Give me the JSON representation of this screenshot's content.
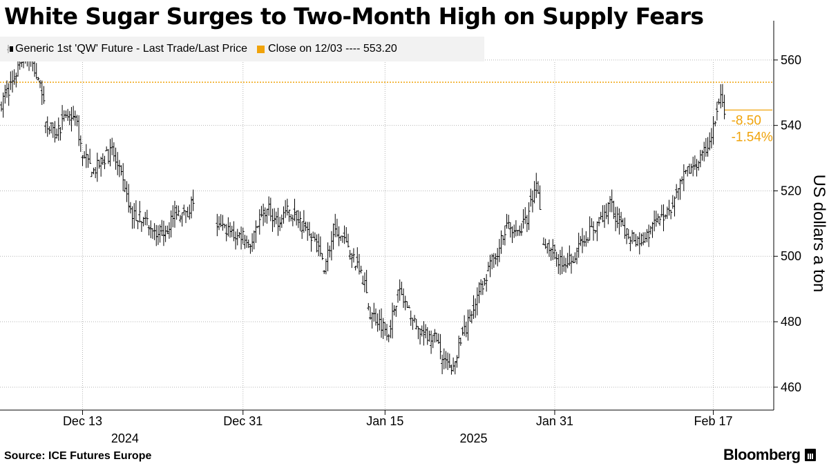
{
  "title": "White Sugar Surges to Two-Month High on Supply Fears",
  "source": "Source: ICE Futures Europe",
  "brand": "Bloomberg",
  "legend": {
    "series_label": "Generic 1st 'QW' Future - Last Trade/Last Price",
    "close_label": "Close on 12/03 ---- 553.20"
  },
  "colors": {
    "series": "#000000",
    "close": "#f0a30a",
    "grid": "#b3b3b3",
    "legend_bg": "#f2f2f2"
  },
  "icons": {
    "series": "ohlc-bar-icon",
    "brand": "bloomberg-terminal-icon"
  },
  "chart_data": {
    "type": "ohlc",
    "ylabel": "US dollars a ton",
    "ylim": [
      453,
      572
    ],
    "yticks": [
      460,
      480,
      500,
      520,
      540,
      560
    ],
    "xticks": [
      {
        "label": "Dec 13",
        "index": 44
      },
      {
        "label": "Dec 31",
        "index": 131
      },
      {
        "label": "Jan 15",
        "index": 208
      },
      {
        "label": "Jan 31",
        "index": 300
      },
      {
        "label": "Feb 17",
        "index": 386
      }
    ],
    "year_labels": [
      {
        "label": "2024",
        "index": 67
      },
      {
        "label": "2025",
        "index": 256
      }
    ],
    "x_range": [
      0,
      418
    ],
    "gaps": [
      [
        104,
        117
      ],
      [
        292,
        294
      ]
    ],
    "reference_line": {
      "label": "Close on 12/03",
      "value": 553.2
    },
    "last_price": 544.7,
    "change": {
      "abs": "-8.50",
      "pct": "-1.54%"
    },
    "anchors": [
      [
        0,
        547
      ],
      [
        6,
        553
      ],
      [
        10,
        560
      ],
      [
        14,
        562
      ],
      [
        18,
        557
      ],
      [
        22,
        549
      ],
      [
        25,
        540
      ],
      [
        30,
        538
      ],
      [
        36,
        543
      ],
      [
        40,
        542
      ],
      [
        44,
        532
      ],
      [
        50,
        526
      ],
      [
        56,
        530
      ],
      [
        60,
        532
      ],
      [
        65,
        524
      ],
      [
        70,
        513
      ],
      [
        75,
        512
      ],
      [
        80,
        510
      ],
      [
        85,
        507
      ],
      [
        90,
        509
      ],
      [
        95,
        514
      ],
      [
        100,
        512
      ],
      [
        104,
        517
      ],
      [
        117,
        509
      ],
      [
        122,
        508
      ],
      [
        128,
        506
      ],
      [
        131,
        507
      ],
      [
        136,
        504
      ],
      [
        140,
        512
      ],
      [
        145,
        514
      ],
      [
        150,
        511
      ],
      [
        155,
        514
      ],
      [
        160,
        512
      ],
      [
        165,
        508
      ],
      [
        170,
        505
      ],
      [
        175,
        497
      ],
      [
        180,
        507
      ],
      [
        185,
        505
      ],
      [
        190,
        500
      ],
      [
        195,
        496
      ],
      [
        200,
        483
      ],
      [
        205,
        480
      ],
      [
        210,
        477
      ],
      [
        215,
        489
      ],
      [
        220,
        485
      ],
      [
        225,
        478
      ],
      [
        230,
        476
      ],
      [
        235,
        475
      ],
      [
        240,
        468
      ],
      [
        245,
        465
      ],
      [
        250,
        476
      ],
      [
        255,
        482
      ],
      [
        260,
        490
      ],
      [
        265,
        497
      ],
      [
        270,
        503
      ],
      [
        275,
        510
      ],
      [
        280,
        507
      ],
      [
        285,
        511
      ],
      [
        290,
        522
      ],
      [
        294,
        505
      ],
      [
        298,
        502
      ],
      [
        302,
        499
      ],
      [
        306,
        498
      ],
      [
        310,
        500
      ],
      [
        315,
        505
      ],
      [
        320,
        508
      ],
      [
        325,
        511
      ],
      [
        330,
        516
      ],
      [
        335,
        510
      ],
      [
        340,
        507
      ],
      [
        345,
        505
      ],
      [
        350,
        506
      ],
      [
        355,
        510
      ],
      [
        360,
        513
      ],
      [
        365,
        517
      ],
      [
        370,
        524
      ],
      [
        375,
        528
      ],
      [
        380,
        530
      ],
      [
        385,
        537
      ],
      [
        390,
        548
      ],
      [
        392,
        545
      ]
    ]
  }
}
